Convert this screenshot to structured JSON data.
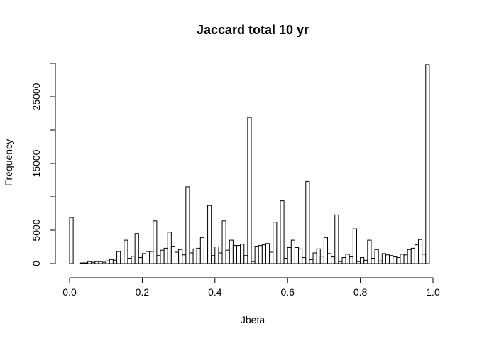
{
  "chart_data": {
    "type": "bar",
    "title": "Jaccard total 10 yr",
    "xlabel": "Jbeta",
    "ylabel": "Frequency",
    "xlim": [
      0,
      1
    ],
    "ylim": [
      0,
      30000
    ],
    "bin_width": 0.01,
    "x_ticks": [
      0.0,
      0.2,
      0.4,
      0.6,
      0.8,
      1.0
    ],
    "x_tick_labels": [
      "0.0",
      "0.2",
      "0.4",
      "0.6",
      "0.8",
      "1.0"
    ],
    "y_ticks": [
      0,
      5000,
      15000,
      25000
    ],
    "y_tick_labels": [
      "0",
      "5000",
      "15000",
      "25000"
    ],
    "grid": false,
    "bar_fill": "#ffffff",
    "bar_stroke": "#000000",
    "bin_starts": [
      0.0,
      0.01,
      0.02,
      0.03,
      0.04,
      0.05,
      0.06,
      0.07,
      0.08,
      0.09,
      0.1,
      0.11,
      0.12,
      0.13,
      0.14,
      0.15,
      0.16,
      0.17,
      0.18,
      0.19,
      0.2,
      0.21,
      0.22,
      0.23,
      0.24,
      0.25,
      0.26,
      0.27,
      0.28,
      0.29,
      0.3,
      0.31,
      0.32,
      0.33,
      0.34,
      0.35,
      0.36,
      0.37,
      0.38,
      0.39,
      0.4,
      0.41,
      0.42,
      0.43,
      0.44,
      0.45,
      0.46,
      0.47,
      0.48,
      0.49,
      0.5,
      0.51,
      0.52,
      0.53,
      0.54,
      0.55,
      0.56,
      0.57,
      0.58,
      0.59,
      0.6,
      0.61,
      0.62,
      0.63,
      0.64,
      0.65,
      0.66,
      0.67,
      0.68,
      0.69,
      0.7,
      0.71,
      0.72,
      0.73,
      0.74,
      0.75,
      0.76,
      0.77,
      0.78,
      0.79,
      0.8,
      0.81,
      0.82,
      0.83,
      0.84,
      0.85,
      0.86,
      0.87,
      0.88,
      0.89,
      0.9,
      0.91,
      0.92,
      0.93,
      0.94,
      0.95,
      0.96,
      0.97,
      0.98,
      0.99
    ],
    "values": [
      6900,
      0,
      0,
      100,
      100,
      300,
      200,
      300,
      300,
      200,
      400,
      600,
      500,
      1800,
      700,
      3500,
      800,
      1100,
      4500,
      900,
      1500,
      1800,
      1800,
      6400,
      1200,
      2000,
      2300,
      4700,
      2600,
      1700,
      2100,
      1300,
      11500,
      1600,
      2200,
      2300,
      3900,
      2500,
      8700,
      1200,
      2500,
      1600,
      6400,
      2000,
      3500,
      2700,
      2700,
      2900,
      1200,
      21900,
      300,
      2600,
      2700,
      2800,
      3000,
      1700,
      6200,
      2500,
      9400,
      800,
      2400,
      3500,
      2400,
      2200,
      900,
      12300,
      600,
      1600,
      2200,
      1100,
      3900,
      1500,
      1000,
      7300,
      300,
      900,
      1400,
      1000,
      5200,
      300,
      900,
      500,
      3500,
      800,
      2100,
      400,
      1500,
      1300,
      1200,
      1000,
      900,
      1400,
      1300,
      2100,
      2300,
      2800,
      3600,
      1400,
      29800,
      0
    ]
  }
}
